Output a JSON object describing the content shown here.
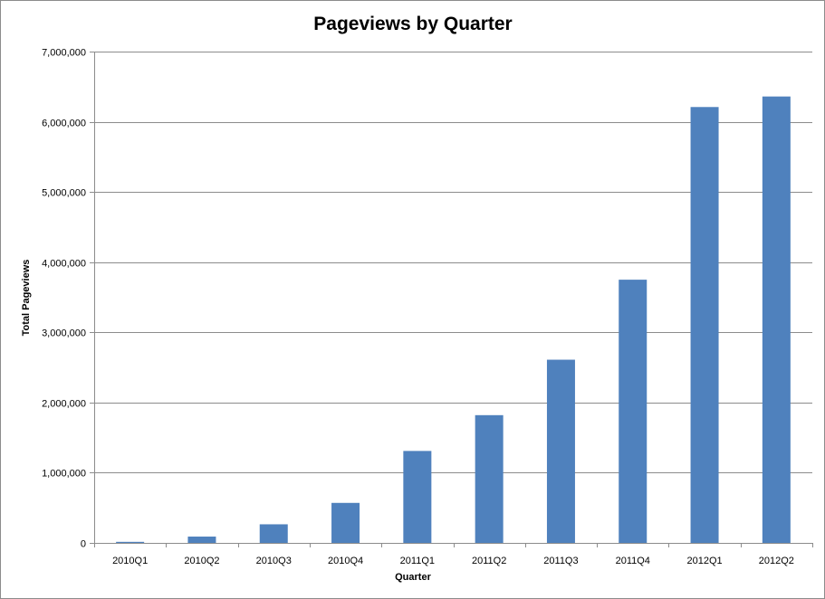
{
  "chart_data": {
    "type": "bar",
    "title": "Pageviews by Quarter",
    "xlabel": "Quarter",
    "ylabel": "Total Pageviews",
    "categories": [
      "2010Q1",
      "2010Q2",
      "2010Q3",
      "2010Q4",
      "2011Q1",
      "2011Q2",
      "2011Q3",
      "2011Q4",
      "2012Q1",
      "2012Q2"
    ],
    "values": [
      15000,
      90000,
      265000,
      570000,
      1310000,
      1820000,
      2610000,
      3750000,
      6210000,
      6360000
    ],
    "ylim": [
      0,
      7000000
    ],
    "yticks": [
      0,
      1000000,
      2000000,
      3000000,
      4000000,
      5000000,
      6000000,
      7000000
    ],
    "ytick_labels": [
      "0",
      "1,000,000",
      "2,000,000",
      "3,000,000",
      "4,000,000",
      "5,000,000",
      "6,000,000",
      "7,000,000"
    ],
    "grid": true,
    "legend": "none",
    "bar_color": "#4f81bd",
    "grid_color": "#8c8c8c"
  }
}
